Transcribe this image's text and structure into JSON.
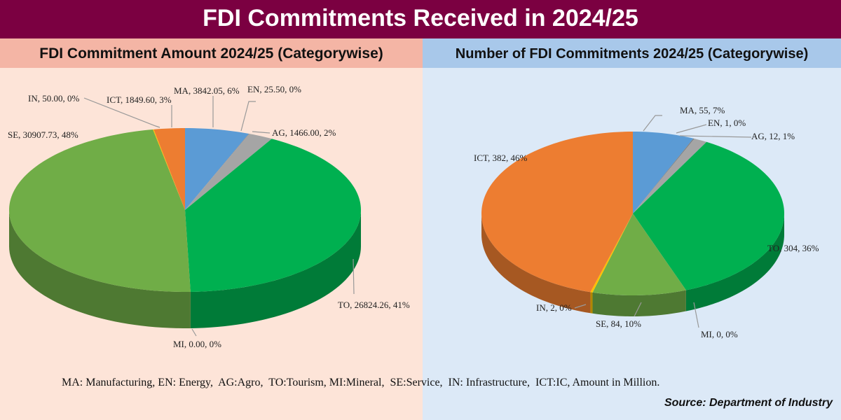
{
  "title": "FDI Commitments Received in 2024/25",
  "legend_note": "MA: Manufacturing, EN: Energy,  AG:Agro,  TO:Tourism, MI:Mineral,  SE:Service,  IN: Infrastructure,  ICT:IC, Amount in Million.",
  "source": "Source: Department of  Industry",
  "colors": {
    "MA": "#5b9bd5",
    "EN": "#7f7f7f",
    "AG": "#a5a5a5",
    "TO": "#00b050",
    "MI": "#ffc000",
    "SE": "#70ad47",
    "IN": "#ffc000",
    "ICT": "#ed7d31"
  },
  "chart_data": [
    {
      "type": "pie",
      "title": "FDI Commitment Amount 2024/25 (Categorywise)",
      "categories": [
        "MA",
        "EN",
        "AG",
        "TO",
        "MI",
        "SE",
        "IN",
        "ICT"
      ],
      "values": [
        3842.05,
        25.5,
        1466.0,
        26824.26,
        0.0,
        30907.73,
        50.0,
        1849.6
      ],
      "labels": [
        "MA, 3842.05, 6%",
        "EN, 25.50, 0%",
        "AG, 1466.00, 2%",
        "TO, 26824.26, 41%",
        "MI, 0.00, 0%",
        "SE, 30907.73, 48%",
        "IN, 50.00, 0%",
        "ICT, 1849.60, 3%"
      ]
    },
    {
      "type": "pie",
      "title": "Number of FDI Commitments 2024/25 (Categorywise)",
      "categories": [
        "MA",
        "EN",
        "AG",
        "TO",
        "MI",
        "SE",
        "IN",
        "ICT"
      ],
      "values": [
        55,
        1,
        12,
        304,
        0,
        84,
        2,
        382
      ],
      "labels": [
        "MA, 55, 7%",
        "EN, 1, 0%",
        "AG, 12, 1%",
        "TO, 304, 36%",
        "MI, 0, 0%",
        "SE, 84, 10%",
        "IN, 2, 0%",
        "ICT, 382, 46%"
      ]
    }
  ]
}
